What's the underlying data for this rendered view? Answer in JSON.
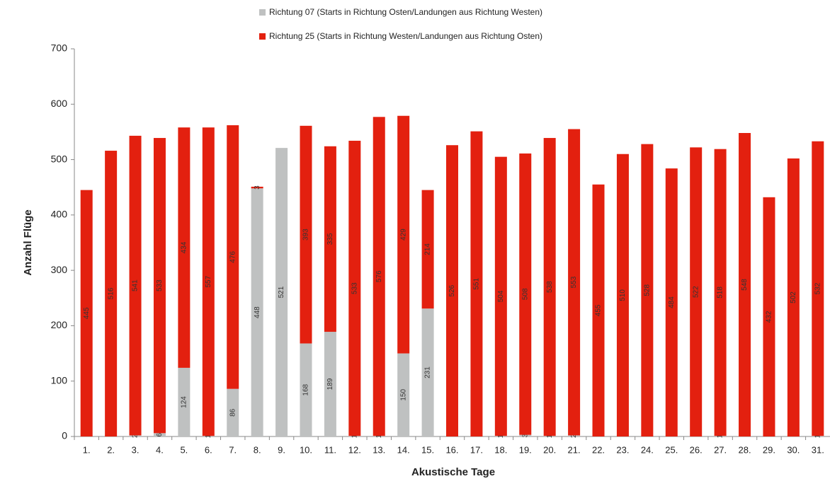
{
  "chart_data": {
    "type": "stacked_bar",
    "xlabel": "Akustische Tage",
    "ylabel": "Anzahl Flüge",
    "categories": [
      "1.",
      "2.",
      "3.",
      "4.",
      "5.",
      "6.",
      "7.",
      "8.",
      "9.",
      "10.",
      "11.",
      "12.",
      "13.",
      "14.",
      "15.",
      "16.",
      "17.",
      "18.",
      "19.",
      "20.",
      "21.",
      "22.",
      "23.",
      "24.",
      "25.",
      "26.",
      "27.",
      "28.",
      "29.",
      "30.",
      "31."
    ],
    "series": [
      {
        "name": "Richtung 07 (Starts in Richtung Osten/Landungen aus Richtung Westen)",
        "color": "#bfc1c1",
        "values": [
          0,
          0,
          2,
          6,
          124,
          1,
          86,
          448,
          521,
          168,
          189,
          1,
          1,
          150,
          231,
          0,
          0,
          1,
          3,
          1,
          2,
          0,
          0,
          0,
          0,
          0,
          1,
          0,
          0,
          0,
          1
        ]
      },
      {
        "name": "Richtung 25 (Starts in Richtung Westen/Landungen aus Richtung Osten)",
        "color": "#e3200f",
        "values": [
          445,
          516,
          541,
          533,
          434,
          557,
          476,
          3,
          0,
          393,
          335,
          533,
          576,
          429,
          214,
          526,
          551,
          504,
          508,
          538,
          553,
          455,
          510,
          528,
          484,
          522,
          518,
          548,
          432,
          502,
          532
        ]
      }
    ],
    "ylim": [
      0,
      700
    ],
    "yticks": [
      0,
      100,
      200,
      300,
      400,
      500,
      600,
      700
    ],
    "grid": false
  }
}
